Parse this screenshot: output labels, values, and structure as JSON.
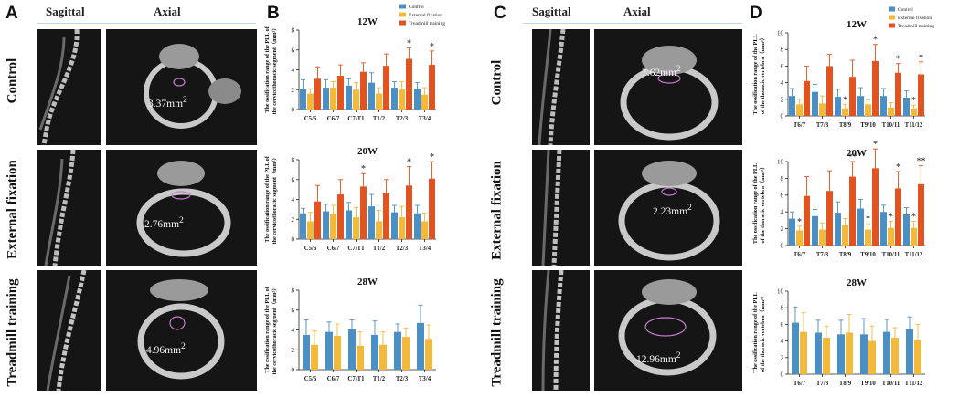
{
  "panel_labels": [
    "A",
    "B",
    "C",
    "D"
  ],
  "imaging": {
    "col_sagittal": "Sagittal",
    "col_axial": "Axial",
    "rows": [
      "Control",
      "External fixation",
      "Treadmill training"
    ],
    "panel_A_measurements": [
      "3.37mm",
      "2.76mm",
      "4.96mm"
    ],
    "panel_C_measurements": [
      "7.62mm",
      "2.23mm",
      "12.96mm"
    ],
    "superscript": "2"
  },
  "legend": [
    "Control",
    "External fixation",
    "Treadmill training"
  ],
  "colors": {
    "control": "#4a90c4",
    "external": "#f2b93b",
    "treadmill": "#e2531f"
  },
  "chart_data": [
    {
      "panel": "B",
      "type": "bar",
      "title": "12W",
      "ylabel_line1": "The ossification range of the PLL of",
      "ylabel_line2": "the cervicothoracic segment（mm²）",
      "categories": [
        "C5/6",
        "C6/7",
        "C7/T1",
        "T1/2",
        "T2/3",
        "T3/4"
      ],
      "ylim": [
        0,
        8
      ],
      "yticks": [
        0,
        2,
        4,
        6,
        8
      ],
      "series": [
        {
          "name": "Control",
          "values": [
            2.1,
            2.2,
            2.4,
            2.7,
            2.2,
            2.1
          ],
          "errors": [
            0.9,
            0.8,
            0.7,
            1.0,
            0.6,
            0.6
          ]
        },
        {
          "name": "External fixation",
          "values": [
            1.6,
            2.2,
            2.0,
            1.6,
            2.0,
            1.5
          ],
          "errors": [
            0.5,
            0.6,
            0.7,
            0.6,
            0.8,
            0.7
          ]
        },
        {
          "name": "Treadmill training",
          "values": [
            3.1,
            3.4,
            3.8,
            4.4,
            5.1,
            4.5
          ],
          "errors": [
            1.2,
            1.1,
            0.9,
            1.2,
            1.1,
            1.4
          ]
        }
      ],
      "significance": [
        {
          "category": "T2/3",
          "label": "*"
        },
        {
          "category": "T3/4",
          "label": "*"
        }
      ],
      "show_legend": true
    },
    {
      "panel": "B",
      "type": "bar",
      "title": "20W",
      "ylabel_line1": "The ossification range of the PLL of",
      "ylabel_line2": "the cervicothoracic segment（mm²）",
      "categories": [
        "C5/6",
        "C6/7",
        "C7/T1",
        "T1/2",
        "T2/3",
        "T3/4"
      ],
      "ylim": [
        0,
        8
      ],
      "yticks": [
        0,
        2,
        4,
        6,
        8
      ],
      "series": [
        {
          "name": "Control",
          "values": [
            2.6,
            2.8,
            2.9,
            3.3,
            2.7,
            2.6
          ],
          "errors": [
            0.5,
            0.7,
            0.8,
            1.2,
            0.7,
            0.8
          ]
        },
        {
          "name": "External fixation",
          "values": [
            1.8,
            2.5,
            2.2,
            1.8,
            2.2,
            1.8
          ],
          "errors": [
            0.9,
            0.9,
            1.0,
            1.1,
            1.1,
            0.8
          ]
        },
        {
          "name": "Treadmill training",
          "values": [
            3.8,
            4.5,
            5.3,
            4.6,
            5.4,
            6.1
          ],
          "errors": [
            1.6,
            1.5,
            1.3,
            1.4,
            1.9,
            1.7
          ]
        }
      ],
      "significance": [
        {
          "category": "C7/T1",
          "label": "*"
        },
        {
          "category": "T2/3",
          "label": "*"
        },
        {
          "category": "T3/4",
          "label": "*"
        }
      ],
      "show_legend": false
    },
    {
      "panel": "B",
      "type": "bar",
      "title": "28W",
      "ylabel_line1": "The ossification range of the PLL of",
      "ylabel_line2": "the cervicothoracic segment（mm²）",
      "categories": [
        "C5/6",
        "C6/7",
        "C7/T1",
        "T1/2",
        "T2/3",
        "T3/4"
      ],
      "ylim": [
        0,
        8
      ],
      "yticks": [
        0,
        2,
        4,
        6,
        8
      ],
      "series": [
        {
          "name": "Control",
          "values": [
            3.5,
            3.8,
            4.1,
            3.5,
            3.8,
            4.7
          ],
          "errors": [
            1.5,
            1.0,
            0.9,
            1.4,
            0.8,
            1.8
          ]
        },
        {
          "name": "External fixation",
          "values": [
            2.5,
            3.4,
            2.4,
            2.5,
            3.3,
            3.1
          ],
          "errors": [
            1.4,
            1.2,
            1.4,
            1.3,
            0.9,
            1.4
          ]
        }
      ],
      "significance": [],
      "show_legend": false
    },
    {
      "panel": "D",
      "type": "bar",
      "title": "12W",
      "ylabel_line1": "The ossification range of the PLL",
      "ylabel_line2": "of the thoracic vertebra（mm²）",
      "categories": [
        "T6/7",
        "T7/8",
        "T8/9",
        "T9/10",
        "T10/11",
        "T11/12"
      ],
      "ylim": [
        0,
        10
      ],
      "yticks": [
        0,
        2,
        4,
        6,
        8,
        10
      ],
      "series": [
        {
          "name": "Control",
          "values": [
            2.4,
            2.9,
            2.3,
            2.4,
            2.4,
            2.2
          ],
          "errors": [
            0.9,
            0.9,
            0.9,
            1.0,
            0.9,
            0.8
          ]
        },
        {
          "name": "External fixation",
          "values": [
            1.4,
            1.5,
            0.9,
            1.4,
            1.0,
            0.9
          ],
          "errors": [
            0.6,
            0.9,
            0.5,
            0.5,
            0.6,
            0.4
          ]
        },
        {
          "name": "Treadmill training",
          "values": [
            4.2,
            6.0,
            4.7,
            6.6,
            5.2,
            5.0
          ],
          "errors": [
            1.8,
            1.4,
            2.0,
            2.0,
            1.1,
            1.5
          ]
        }
      ],
      "significance": [
        {
          "category": "T8/9",
          "label": "*",
          "series": "External fixation"
        },
        {
          "category": "T9/10",
          "label": "*"
        },
        {
          "category": "T10/11",
          "label": "*"
        },
        {
          "category": "T11/12",
          "label": "*",
          "series": "External fixation"
        },
        {
          "category": "T11/12",
          "label": "*"
        }
      ],
      "show_legend": true
    },
    {
      "panel": "D",
      "type": "bar",
      "title": "20W",
      "ylabel_line1": "The ossification range of the PLL",
      "ylabel_line2": "of the thoracic vertebra（mm²）",
      "categories": [
        "T6/7",
        "T7/8",
        "T8/9",
        "T9/10",
        "T10/11",
        "T11/12"
      ],
      "ylim": [
        0,
        10
      ],
      "yticks": [
        0,
        2,
        4,
        6,
        8,
        10
      ],
      "series": [
        {
          "name": "Control",
          "values": [
            3.2,
            3.5,
            3.9,
            4.4,
            4.0,
            3.7
          ],
          "errors": [
            0.8,
            0.8,
            1.3,
            1.1,
            0.8,
            0.8
          ]
        },
        {
          "name": "External fixation",
          "values": [
            1.8,
            1.9,
            2.4,
            1.9,
            2.1,
            2.1
          ],
          "errors": [
            0.5,
            0.8,
            0.8,
            0.7,
            0.8,
            0.8
          ]
        },
        {
          "name": "Treadmill training",
          "values": [
            5.9,
            6.5,
            8.2,
            9.2,
            6.8,
            7.3
          ],
          "errors": [
            2.3,
            2.4,
            1.8,
            2.3,
            2.0,
            2.2
          ]
        }
      ],
      "significance": [
        {
          "category": "T6/7",
          "label": "*",
          "series": "External fixation"
        },
        {
          "category": "T8/9",
          "label": "**"
        },
        {
          "category": "T9/10",
          "label": "*",
          "series": "External fixation"
        },
        {
          "category": "T9/10",
          "label": "*"
        },
        {
          "category": "T10/11",
          "label": "*",
          "series": "External fixation"
        },
        {
          "category": "T10/11",
          "label": "*"
        },
        {
          "category": "T11/12",
          "label": "*",
          "series": "External fixation"
        },
        {
          "category": "T11/12",
          "label": "**"
        }
      ],
      "show_legend": false
    },
    {
      "panel": "D",
      "type": "bar",
      "title": "28W",
      "ylabel_line1": "The ossification range of the PLL",
      "ylabel_line2": "of the thoracic vertebra（mm²）",
      "categories": [
        "T6/7",
        "T7/8",
        "T8/9",
        "T9/10",
        "T10/11",
        "T11/12"
      ],
      "ylim": [
        0,
        10
      ],
      "yticks": [
        0,
        2,
        4,
        6,
        8,
        10
      ],
      "series": [
        {
          "name": "Control",
          "values": [
            6.2,
            5.0,
            4.8,
            4.8,
            5.1,
            5.5
          ],
          "errors": [
            1.9,
            1.5,
            1.7,
            1.9,
            1.5,
            1.4
          ]
        },
        {
          "name": "External fixation",
          "values": [
            5.1,
            4.4,
            5.0,
            4.0,
            4.4,
            4.1
          ],
          "errors": [
            2.3,
            1.4,
            2.2,
            1.8,
            1.2,
            1.9
          ]
        }
      ],
      "significance": [],
      "show_legend": false
    }
  ]
}
